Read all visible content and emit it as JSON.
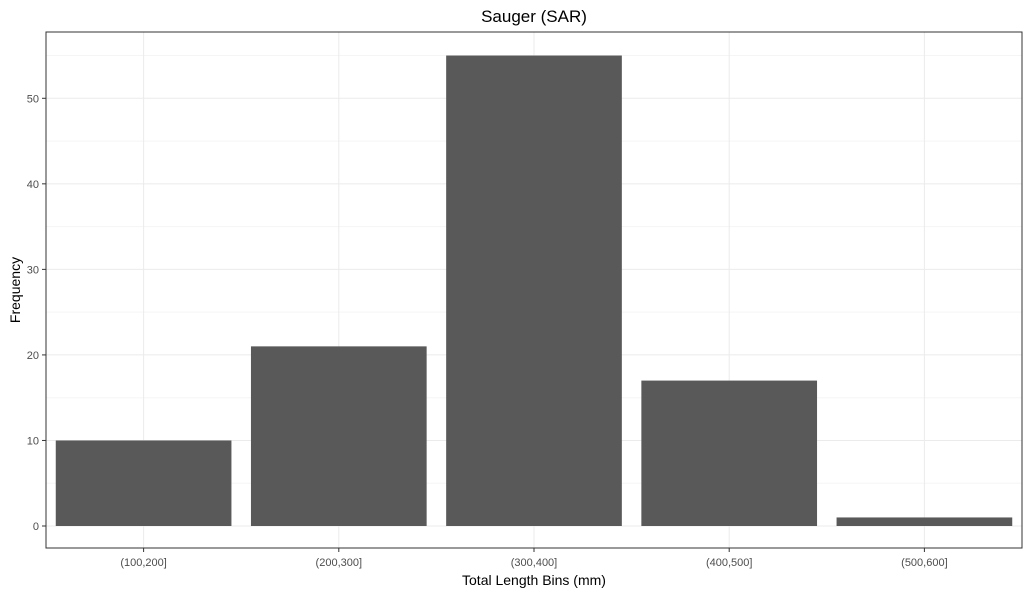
{
  "chart_data": {
    "type": "bar",
    "title": "Sauger (SAR)",
    "xlabel": "Total Length Bins (mm)",
    "ylabel": "Frequency",
    "categories": [
      "(100,200]",
      "(200,300]",
      "(300,400]",
      "(400,500]",
      "(500,600]"
    ],
    "values": [
      10,
      21,
      55,
      17,
      1
    ],
    "ylim": [
      0,
      57.75
    ],
    "yticks": [
      0,
      10,
      20,
      30,
      40,
      50
    ],
    "grid": true,
    "legend": "none",
    "colors": {
      "bar": "#595959",
      "grid_major": "#ebebeb",
      "grid_minor": "#f5f5f5",
      "panel_border": "#333333",
      "tick_text": "#4d4d4d"
    }
  }
}
